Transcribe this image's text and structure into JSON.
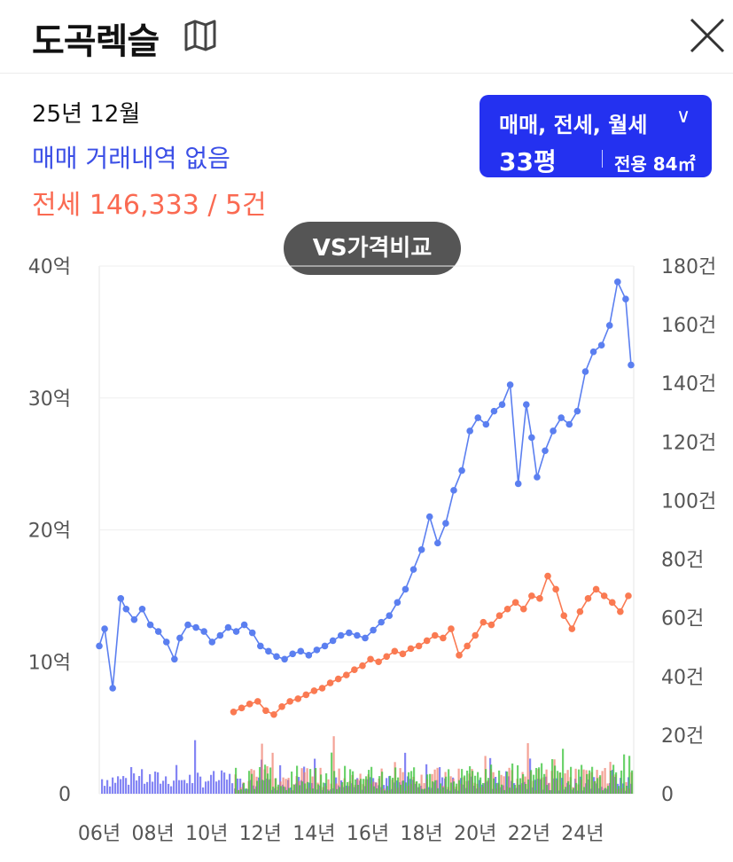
{
  "header": {
    "title": "도곡렉슬",
    "map_icon": "map-icon",
    "close_icon": "close-icon"
  },
  "summary": {
    "period": "25년 12월",
    "sale_text": "매매 거래내역 없음",
    "jeonse_text": "전세 146,333 / 5건"
  },
  "filter": {
    "types_label": "매매, 전세, 월세",
    "size_label": "33평",
    "area_label": "전용 84㎡",
    "bg_color": "#2431f0"
  },
  "compare_button": {
    "label": "VS가격비교"
  },
  "colors": {
    "sale": "#5b7ff0",
    "jeonse": "#fa7a52",
    "volume_sale": "#5b5cf0",
    "volume_jeonse": "#f07a6a",
    "volume_monthly": "#3cc43c"
  },
  "chart_data": {
    "type": "line",
    "x_labels": [
      "06년",
      "08년",
      "10년",
      "12년",
      "14년",
      "16년",
      "18년",
      "20년",
      "22년",
      "24년"
    ],
    "x_range": [
      2006,
      2025.9
    ],
    "y_left": {
      "range": [
        0,
        40
      ],
      "ticks": [
        "0",
        "10억",
        "20억",
        "30억",
        "40억"
      ],
      "tick_values": [
        0,
        10,
        20,
        30,
        40
      ]
    },
    "y_right": {
      "range": [
        0,
        180
      ],
      "ticks": [
        "0",
        "20건",
        "40건",
        "60건",
        "80건",
        "100건",
        "120건",
        "140건",
        "160건",
        "180건"
      ],
      "tick_values": [
        0,
        20,
        40,
        60,
        80,
        100,
        120,
        140,
        160,
        180
      ]
    },
    "grid": true,
    "series": [
      {
        "key": "sale",
        "x": [
          2006.0,
          2006.2,
          2006.5,
          2006.8,
          2007.0,
          2007.3,
          2007.6,
          2007.9,
          2008.2,
          2008.5,
          2008.8,
          2009.0,
          2009.3,
          2009.6,
          2009.9,
          2010.2,
          2010.5,
          2010.8,
          2011.1,
          2011.4,
          2011.7,
          2012.0,
          2012.3,
          2012.6,
          2012.9,
          2013.2,
          2013.5,
          2013.8,
          2014.1,
          2014.4,
          2014.7,
          2015.0,
          2015.3,
          2015.6,
          2015.9,
          2016.2,
          2016.5,
          2016.8,
          2017.1,
          2017.4,
          2017.7,
          2018.0,
          2018.3,
          2018.6,
          2018.9,
          2019.2,
          2019.5,
          2019.8,
          2020.1,
          2020.4,
          2020.7,
          2021.0,
          2021.3,
          2021.6,
          2021.9,
          2022.1,
          2022.3,
          2022.6,
          2022.9,
          2023.2,
          2023.5,
          2023.8,
          2024.1,
          2024.4,
          2024.7,
          2025.0,
          2025.3,
          2025.6,
          2025.8
        ],
        "y": [
          11.2,
          12.5,
          8.0,
          14.8,
          14.0,
          13.2,
          14.0,
          12.8,
          12.3,
          11.5,
          10.2,
          11.8,
          12.8,
          12.6,
          12.3,
          11.5,
          12.0,
          12.6,
          12.3,
          12.8,
          12.2,
          11.2,
          10.8,
          10.4,
          10.2,
          10.6,
          10.8,
          10.5,
          10.9,
          11.2,
          11.6,
          12.0,
          12.2,
          12.0,
          11.8,
          12.4,
          13.0,
          13.5,
          14.5,
          15.5,
          17.0,
          18.5,
          21.0,
          19.0,
          20.5,
          23.0,
          24.5,
          27.5,
          28.5,
          28.0,
          29.0,
          29.5,
          31.0,
          23.5,
          29.5,
          27.0,
          24.0,
          26.0,
          27.5,
          28.5,
          28.0,
          29.0,
          32.0,
          33.5,
          34.0,
          35.5,
          38.8,
          37.5,
          32.5
        ]
      },
      {
        "key": "jeonse",
        "x": [
          2011.0,
          2011.3,
          2011.6,
          2011.9,
          2012.2,
          2012.5,
          2012.8,
          2013.1,
          2013.4,
          2013.7,
          2014.0,
          2014.3,
          2014.6,
          2014.9,
          2015.2,
          2015.5,
          2015.8,
          2016.1,
          2016.4,
          2016.7,
          2017.0,
          2017.3,
          2017.6,
          2017.9,
          2018.2,
          2018.5,
          2018.8,
          2019.1,
          2019.4,
          2019.7,
          2020.0,
          2020.3,
          2020.6,
          2020.9,
          2021.2,
          2021.5,
          2021.8,
          2022.1,
          2022.4,
          2022.7,
          2023.0,
          2023.3,
          2023.6,
          2023.9,
          2024.2,
          2024.5,
          2024.8,
          2025.1,
          2025.4,
          2025.7
        ],
        "y": [
          6.2,
          6.5,
          6.8,
          7.0,
          6.3,
          6.0,
          6.6,
          7.0,
          7.2,
          7.5,
          7.8,
          8.0,
          8.4,
          8.7,
          9.0,
          9.4,
          9.7,
          10.2,
          10.0,
          10.4,
          10.8,
          10.6,
          11.0,
          11.2,
          11.6,
          12.0,
          11.8,
          12.5,
          10.5,
          11.2,
          12.0,
          13.0,
          12.8,
          13.5,
          14.0,
          14.5,
          14.0,
          15.0,
          14.8,
          16.5,
          15.5,
          13.5,
          12.5,
          13.8,
          14.8,
          15.5,
          15.0,
          14.5,
          13.8,
          15.0
        ]
      }
    ]
  }
}
